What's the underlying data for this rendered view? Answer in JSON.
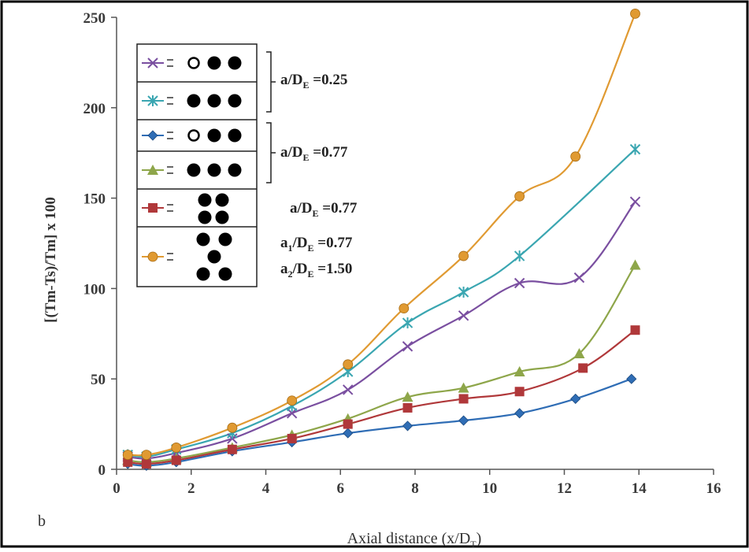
{
  "chart_data": {
    "type": "line",
    "panel_label": "b",
    "xlabel": "Axial distance (x/D",
    "xlabel_sub": "T",
    "xlabel_close": ")",
    "ylabel": "[(Tm-Ts)/Tm] x 100",
    "xlim": [
      0,
      16
    ],
    "ylim": [
      0,
      250
    ],
    "xticks": [
      "0",
      "2",
      "4",
      "6",
      "8",
      "10",
      "12",
      "14",
      "16"
    ],
    "yticks": [
      "0",
      "50",
      "100",
      "150",
      "200",
      "250"
    ],
    "series": [
      {
        "marker": "x",
        "color": "#7a4fa0",
        "x": [
          0.3,
          0.8,
          1.6,
          3.1,
          4.7,
          6.2,
          7.8,
          9.3,
          10.8,
          12.4,
          13.9
        ],
        "y": [
          7,
          6,
          9,
          17,
          31,
          44,
          68,
          85,
          103,
          106,
          148
        ]
      },
      {
        "marker": "asterisk",
        "color": "#3aa6b1",
        "x": [
          0.3,
          0.8,
          1.6,
          3.1,
          4.7,
          6.2,
          7.8,
          9.3,
          10.8,
          13.9
        ],
        "y": [
          8,
          7,
          11,
          20,
          35,
          54,
          81,
          98,
          118,
          177
        ]
      },
      {
        "marker": "diamond",
        "color": "#2f6db5",
        "x": [
          0.3,
          0.8,
          1.6,
          3.1,
          4.7,
          6.2,
          7.8,
          9.3,
          10.8,
          12.3,
          13.8
        ],
        "y": [
          3,
          2,
          4,
          10,
          15,
          20,
          24,
          27,
          31,
          39,
          50
        ]
      },
      {
        "marker": "triangle",
        "color": "#8ea64a",
        "x": [
          0.3,
          0.8,
          1.6,
          3.1,
          4.7,
          6.2,
          7.8,
          9.3,
          10.8,
          12.4,
          13.9
        ],
        "y": [
          5,
          4,
          6,
          12,
          19,
          28,
          40,
          45,
          54,
          64,
          113
        ]
      },
      {
        "marker": "square",
        "color": "#b0383a",
        "x": [
          0.3,
          0.8,
          1.6,
          3.1,
          4.7,
          6.2,
          7.8,
          9.3,
          10.8,
          12.5,
          13.9
        ],
        "y": [
          4,
          3,
          5,
          11,
          17,
          25,
          34,
          39,
          43,
          56,
          77
        ]
      },
      {
        "marker": "circle",
        "color": "#e09a32",
        "x": [
          0.3,
          0.8,
          1.6,
          3.1,
          4.7,
          6.2,
          7.7,
          9.3,
          10.8,
          12.3,
          13.9
        ],
        "y": [
          8,
          8,
          12,
          23,
          38,
          58,
          89,
          118,
          151,
          173,
          252
        ]
      }
    ],
    "legend": {
      "rows": [
        {
          "series": 0,
          "circles": "open-filled-filled"
        },
        {
          "series": 1,
          "circles": "filled-filled-filled"
        },
        {
          "series": 2,
          "circles": "open-filled-filled"
        },
        {
          "series": 3,
          "circles": "filled-filled-filled"
        },
        {
          "series": 4,
          "circles": "square-4"
        },
        {
          "series": 5,
          "circles": "hex-5"
        }
      ],
      "annotations": [
        {
          "pre": "a/D",
          "sub": "E",
          "post": " =0.25"
        },
        {
          "pre": "a/D",
          "sub": "E",
          "post": " =0.77"
        },
        {
          "pre": "a/D",
          "sub": "E",
          "post": " =0.77"
        },
        {
          "pre": "a",
          "sub1": "1",
          "mid": "/D",
          "sub": "E",
          "post": " =0.77"
        },
        {
          "pre": "a",
          "sub1": "2",
          "mid": "/D",
          "sub": "E",
          "post": " =1.50"
        }
      ]
    }
  }
}
